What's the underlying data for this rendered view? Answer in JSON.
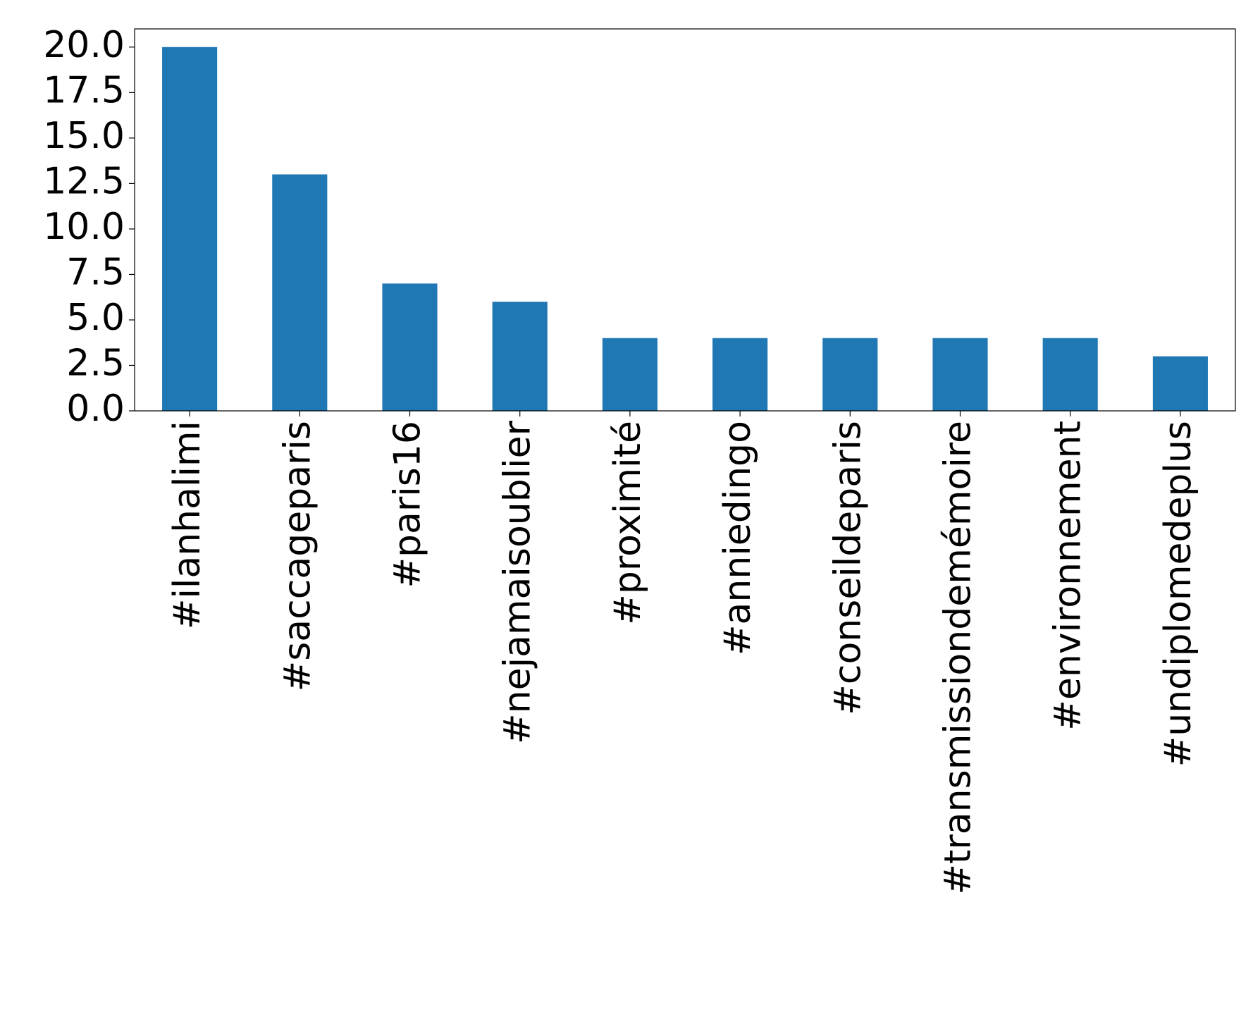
{
  "chart_data": {
    "type": "bar",
    "categories": [
      "#ilanhalimi",
      "#saccageparis",
      "#paris16",
      "#nejamaisoublier",
      "#proximité",
      "#anniedingo",
      "#conseildeparis",
      "#transmissiondemémoire",
      "#environnement",
      "#undiplomedeplus"
    ],
    "values": [
      20,
      13,
      7,
      6,
      4,
      4,
      4,
      4,
      4,
      3
    ],
    "color": "#1f77b4",
    "ylim": [
      0,
      21
    ],
    "yticks": [
      {
        "value": 0,
        "label": "0.0"
      },
      2.5,
      {
        "value": 5,
        "label": "5.0"
      },
      7.5,
      {
        "value": 10,
        "label": "10.0"
      },
      12.5,
      {
        "value": 15,
        "label": "15.0"
      },
      17.5,
      {
        "value": 20,
        "label": "20.0"
      }
    ],
    "grid": false
  }
}
